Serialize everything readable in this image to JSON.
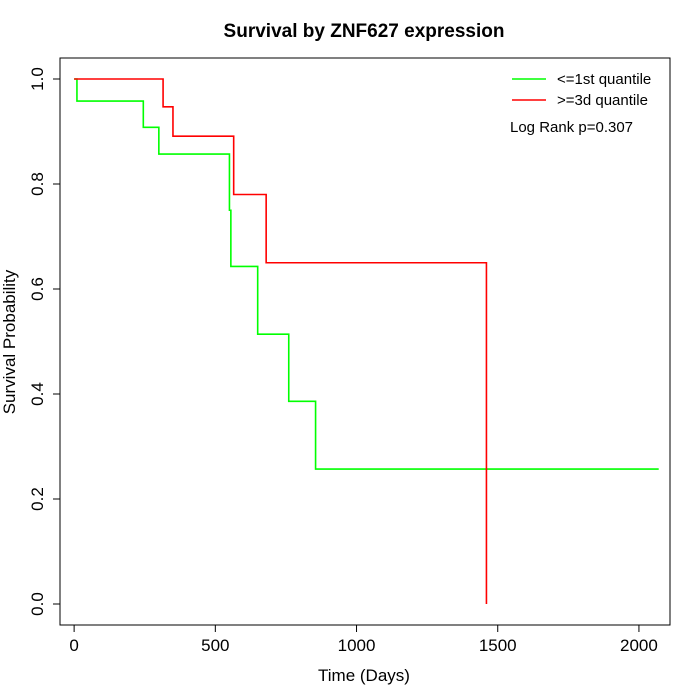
{
  "chart_data": {
    "type": "line",
    "title": "Survival by ZNF627 expression",
    "xlabel": "Time (Days)",
    "ylabel": "Survival Probability",
    "xlim": [
      -50,
      2110
    ],
    "ylim": [
      -0.04,
      1.04
    ],
    "xticks": [
      0,
      500,
      1000,
      1500,
      2000
    ],
    "yticks": [
      0.0,
      0.2,
      0.4,
      0.6,
      0.8,
      1.0
    ],
    "xtick_labels": [
      "0",
      "500",
      "1000",
      "1500",
      "2000"
    ],
    "ytick_labels": [
      "0.0",
      "0.2",
      "0.4",
      "0.6",
      "0.8",
      "1.0"
    ],
    "grid": false,
    "legend_position": "top-right",
    "series": [
      {
        "name": "<=1st quantile",
        "color": "#00ff00",
        "step": true,
        "points": [
          [
            0,
            1.0
          ],
          [
            10,
            0.958
          ],
          [
            245,
            0.908
          ],
          [
            300,
            0.857
          ],
          [
            550,
            0.75
          ],
          [
            555,
            0.643
          ],
          [
            650,
            0.514
          ],
          [
            760,
            0.386
          ],
          [
            855,
            0.257
          ],
          [
            2070,
            0.257
          ]
        ]
      },
      {
        "name": ">=3d quantile",
        "color": "#ff0000",
        "step": true,
        "points": [
          [
            0,
            1.0
          ],
          [
            315,
            0.947
          ],
          [
            350,
            0.891
          ],
          [
            565,
            0.78
          ],
          [
            680,
            0.65
          ],
          [
            1460,
            0.0
          ]
        ]
      }
    ],
    "annotation": "Log Rank p=0.307"
  }
}
